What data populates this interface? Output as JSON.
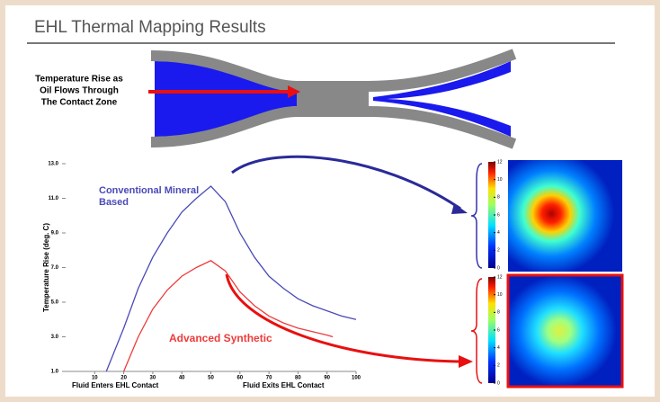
{
  "title": "EHL Thermal Mapping Results",
  "diagram_label": [
    "Temperature Rise as",
    "Oil Flows Through",
    "The Contact Zone"
  ],
  "chart_data": {
    "type": "line",
    "ylabel": "Temperature Rise (deg. C)",
    "x_annotations": [
      "Fluid Enters EHL Contact",
      "Fluid Exits EHL Contact"
    ],
    "xlim": [
      0,
      100
    ],
    "xticks": [
      10,
      20,
      30,
      40,
      50,
      60,
      70,
      80,
      90,
      100
    ],
    "ylim": [
      1,
      13
    ],
    "yticks": [
      {
        "value": 1,
        "label": "1.0"
      },
      {
        "value": 3,
        "label": "3.0"
      },
      {
        "value": 5,
        "label": "5.0"
      },
      {
        "value": 7,
        "label": "7.0"
      },
      {
        "value": 9,
        "label": "9.0"
      },
      {
        "value": 11,
        "label": "11.0"
      },
      {
        "value": 13,
        "label": "13.0"
      }
    ],
    "series": [
      {
        "name": "Conventional Mineral Based",
        "color": "#4a4ab8",
        "x": [
          14,
          20,
          25,
          30,
          35,
          40,
          45,
          50,
          55,
          60,
          65,
          70,
          75,
          80,
          85,
          90,
          95,
          100
        ],
        "values": [
          1.0,
          3.5,
          5.8,
          7.6,
          9.0,
          10.2,
          11.0,
          11.7,
          10.8,
          9.0,
          7.6,
          6.5,
          5.8,
          5.2,
          4.8,
          4.5,
          4.2,
          4.0
        ]
      },
      {
        "name": "Advanced Synthetic",
        "color": "#ee3b3b",
        "x": [
          20,
          25,
          30,
          35,
          40,
          45,
          50,
          55,
          60,
          65,
          70,
          75,
          80,
          85,
          90,
          92
        ],
        "values": [
          1.0,
          3.0,
          4.6,
          5.7,
          6.5,
          7.0,
          7.4,
          6.8,
          5.6,
          4.8,
          4.2,
          3.8,
          3.5,
          3.3,
          3.1,
          3.0
        ]
      }
    ]
  },
  "colorbar": {
    "lim": [
      0,
      12
    ],
    "ticks": [
      0,
      2,
      4,
      6,
      8,
      10,
      12
    ]
  }
}
